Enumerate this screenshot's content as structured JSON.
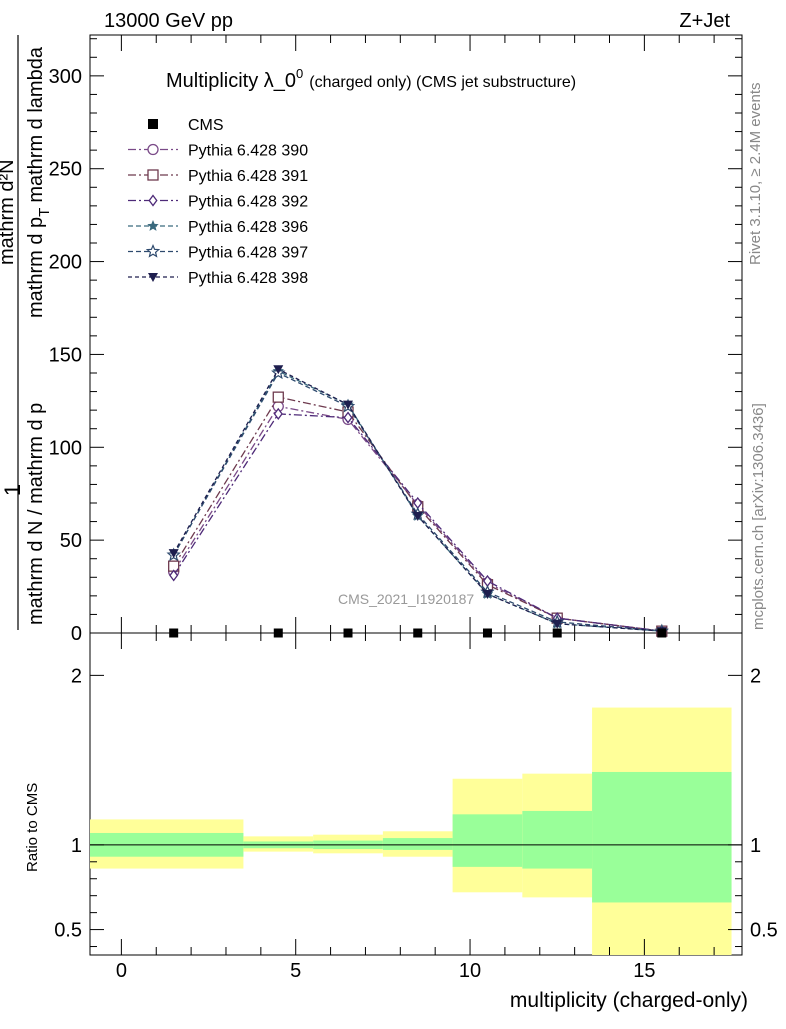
{
  "header": {
    "left": "13000 GeV pp",
    "right": "Z+Jet"
  },
  "side_labels": {
    "rivet": "Rivet 3.1.10, ≥ 2.4M events",
    "mcplots": "mcplots.cern.ch [arXiv:1306.3436]"
  },
  "watermark": "CMS_2021_I1920187",
  "chart_data": {
    "type": "line",
    "title_main": "Multiplicity λ_0",
    "title_sup": "0",
    "title_small": "(charged only) (CMS jet substructure)",
    "ylabel_top": {
      "one": "1",
      "denominator": "mathrm d N / mathrm d p",
      "numerator": "mathrm d²N",
      "numerator_cont": "mathrm d p",
      "sub": "T",
      "tail": "mathrm d lambda"
    },
    "ylim_top": [
      0,
      322
    ],
    "yticks_top": [
      0,
      50,
      100,
      150,
      200,
      250,
      300
    ],
    "xlabel": "multiplicity (charged-only)",
    "xlim": [
      -0.9,
      17.8
    ],
    "xticks": [
      0,
      5,
      10,
      15
    ],
    "x": [
      1.5,
      4.5,
      6.5,
      8.5,
      10.5,
      12.5,
      15.5
    ],
    "cms": [
      0,
      0,
      0,
      0,
      0,
      0,
      0
    ],
    "legend": [
      {
        "name": "CMS",
        "color": "#000000",
        "marker": "square-filled",
        "dash": ""
      },
      {
        "name": "Pythia 6.428 390",
        "color": "#7a4a88",
        "marker": "circle",
        "dash": "8,3,2,3"
      },
      {
        "name": "Pythia 6.428 391",
        "color": "#6e3a4e",
        "marker": "square",
        "dash": "8,3,2,3"
      },
      {
        "name": "Pythia 6.428 392",
        "color": "#4e2a78",
        "marker": "diamond",
        "dash": "8,3,2,3"
      },
      {
        "name": "Pythia 6.428 396",
        "color": "#3a6a7e",
        "marker": "star-filled",
        "dash": "5,3"
      },
      {
        "name": "Pythia 6.428 397",
        "color": "#2e4a6e",
        "marker": "star",
        "dash": "5,3"
      },
      {
        "name": "Pythia 6.428 398",
        "color": "#1e1e4e",
        "marker": "triangle-down",
        "dash": "4,3"
      }
    ],
    "series": [
      {
        "name": "Pythia 6.428 390",
        "values": [
          33,
          122,
          115,
          69,
          27,
          8,
          1
        ]
      },
      {
        "name": "Pythia 6.428 391",
        "values": [
          36,
          127,
          119,
          68,
          26,
          8,
          1
        ]
      },
      {
        "name": "Pythia 6.428 392",
        "values": [
          31,
          118,
          116,
          70,
          28,
          8,
          1
        ]
      },
      {
        "name": "Pythia 6.428 396",
        "values": [
          42,
          141,
          123,
          63,
          21,
          5,
          1
        ]
      },
      {
        "name": "Pythia 6.428 397",
        "values": [
          42,
          140,
          122,
          64,
          22,
          6,
          1
        ]
      },
      {
        "name": "Pythia 6.428 398",
        "values": [
          43,
          142,
          123,
          63,
          21,
          5,
          1
        ]
      }
    ],
    "ratio": {
      "ylabel": "Ratio to CMS",
      "ylim": [
        0.35,
        2.25
      ],
      "yticks": [
        0.5,
        1,
        2
      ],
      "ytick_labels": [
        "0.5",
        "1",
        "2"
      ],
      "bins": [
        {
          "lo": -0.9,
          "hi": 3.5,
          "stat": [
            0.93,
            1.07
          ],
          "total": [
            0.86,
            1.15
          ]
        },
        {
          "lo": 3.5,
          "hi": 5.5,
          "stat": [
            0.98,
            1.02
          ],
          "total": [
            0.96,
            1.05
          ]
        },
        {
          "lo": 5.5,
          "hi": 7.5,
          "stat": [
            0.975,
            1.025
          ],
          "total": [
            0.95,
            1.06
          ]
        },
        {
          "lo": 7.5,
          "hi": 9.5,
          "stat": [
            0.97,
            1.04
          ],
          "total": [
            0.93,
            1.08
          ]
        },
        {
          "lo": 9.5,
          "hi": 11.5,
          "stat": [
            0.87,
            1.18
          ],
          "total": [
            0.72,
            1.39
          ]
        },
        {
          "lo": 11.5,
          "hi": 13.5,
          "stat": [
            0.86,
            1.2
          ],
          "total": [
            0.69,
            1.42
          ]
        },
        {
          "lo": 13.5,
          "hi": 17.5,
          "stat": [
            0.66,
            1.43
          ],
          "total": [
            0.35,
            1.81
          ]
        }
      ],
      "stat_color": "#99ff99",
      "total_color": "#ffff99"
    }
  }
}
